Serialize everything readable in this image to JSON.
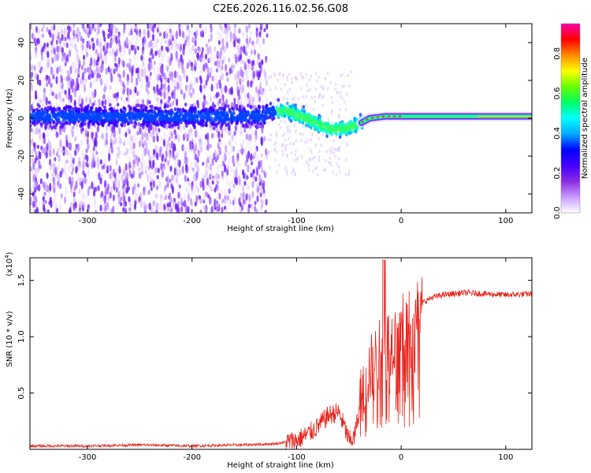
{
  "page_title": "C2E6.2026.116.02.56.G08",
  "chart_data": [
    {
      "type": "heatmap",
      "title": "C2E6.2026.116.02.56.G08",
      "xlabel": "Height of straight line (km)",
      "ylabel": "Frequency (Hz)",
      "xlim": [
        -355,
        125
      ],
      "ylim": [
        -50,
        50
      ],
      "xticks": [
        -300,
        -200,
        -100,
        0,
        100
      ],
      "xtick_labels": [
        "-300",
        "-200",
        "-100",
        "0",
        "100"
      ],
      "yticks": [
        -40,
        -20,
        0,
        20,
        40
      ],
      "ytick_labels": [
        "-40",
        "-20",
        "0",
        "20",
        "40"
      ],
      "colorbar": {
        "label": "Normalized spectral amplitude",
        "range": [
          0,
          0.95
        ],
        "ticks": [
          0.0,
          0.2,
          0.4,
          0.6,
          0.8
        ],
        "tick_labels": [
          "0.0",
          "0.2",
          "0.4",
          "0.6",
          "0.8"
        ],
        "colors": [
          "#ffffff",
          "#c89bff",
          "#8a2be2",
          "#4400ff",
          "#0000ff",
          "#00aaff",
          "#00ffff",
          "#00ff66",
          "#66ff00",
          "#ffff00",
          "#ff8800",
          "#ff0000",
          "#ff00aa"
        ]
      },
      "ridge_track": [
        {
          "x": -130,
          "y": 3
        },
        {
          "x": -110,
          "y": 4
        },
        {
          "x": -95,
          "y": 1
        },
        {
          "x": -80,
          "y": -3
        },
        {
          "x": -65,
          "y": -6
        },
        {
          "x": -50,
          "y": -5
        },
        {
          "x": -40,
          "y": -3
        },
        {
          "x": -30,
          "y": 0
        },
        {
          "x": -15,
          "y": 1
        },
        {
          "x": 0,
          "y": 1
        },
        {
          "x": 50,
          "y": 1
        },
        {
          "x": 125,
          "y": 1
        }
      ]
    },
    {
      "type": "line",
      "xlabel": "Height of straight line (km)",
      "ylabel": "SNR (10 * v/v)",
      "y_multiplier": "(x10",
      "y_multiplier_exp": "4",
      "xlim": [
        -355,
        125
      ],
      "ylim": [
        0,
        1.7
      ],
      "xticks": [
        -300,
        -200,
        -100,
        0,
        100
      ],
      "xtick_labels": [
        "-300",
        "-200",
        "-100",
        "0",
        "100"
      ],
      "yticks": [
        0.5,
        1.0,
        1.5
      ],
      "ytick_labels": [
        "0.5",
        "1.0",
        "1.5"
      ],
      "series": [
        {
          "name": "SNR",
          "color": "#e8241c",
          "x": [
            -355,
            -300,
            -250,
            -200,
            -150,
            -120,
            -100,
            -90,
            -80,
            -70,
            -60,
            -55,
            -50,
            -45,
            -40,
            -35,
            -30,
            -25,
            -20,
            -15,
            -10,
            -5,
            0,
            5,
            10,
            20,
            30,
            40,
            60,
            80,
            100,
            125
          ],
          "y": [
            0.03,
            0.03,
            0.04,
            0.03,
            0.04,
            0.05,
            0.08,
            0.13,
            0.2,
            0.3,
            0.33,
            0.22,
            0.08,
            0.1,
            0.35,
            0.6,
            0.7,
            0.78,
            0.85,
            0.92,
            0.96,
            1.0,
            1.05,
            1.12,
            1.2,
            1.3,
            1.35,
            1.37,
            1.39,
            1.38,
            1.37,
            1.38
          ]
        }
      ]
    }
  ]
}
